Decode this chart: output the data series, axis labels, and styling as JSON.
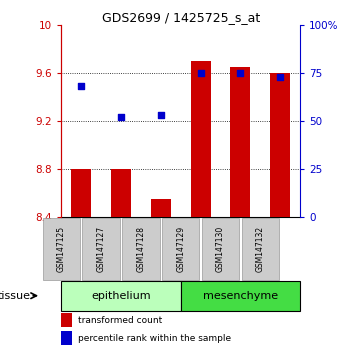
{
  "title": "GDS2699 / 1425725_s_at",
  "samples": [
    "GSM147125",
    "GSM147127",
    "GSM147128",
    "GSM147129",
    "GSM147130",
    "GSM147132"
  ],
  "transformed_count": [
    8.8,
    8.8,
    8.55,
    9.7,
    9.65,
    9.6
  ],
  "percentile_rank": [
    68,
    52,
    53,
    75,
    75,
    73
  ],
  "ylim_left": [
    8.4,
    10.0
  ],
  "ylim_right": [
    0,
    100
  ],
  "yticks_left": [
    8.4,
    8.8,
    9.2,
    9.6,
    10.0
  ],
  "yticks_right": [
    0,
    25,
    50,
    75,
    100
  ],
  "ytick_labels_left": [
    "8.4",
    "8.8",
    "9.2",
    "9.6",
    "10"
  ],
  "ytick_labels_right": [
    "0",
    "25",
    "50",
    "75",
    "100%"
  ],
  "bar_color": "#cc0000",
  "dot_color": "#0000cc",
  "bar_bottom": 8.4,
  "groups": [
    {
      "label": "epithelium",
      "indices": [
        0,
        1,
        2
      ],
      "color": "#bbffbb"
    },
    {
      "label": "mesenchyme",
      "indices": [
        3,
        4,
        5
      ],
      "color": "#44dd44"
    }
  ],
  "tissue_label": "tissue",
  "legend_bar": "transformed count",
  "legend_dot": "percentile rank within the sample",
  "grid_color": "#888888",
  "background_color": "#ffffff",
  "xticklabel_bg": "#cccccc"
}
